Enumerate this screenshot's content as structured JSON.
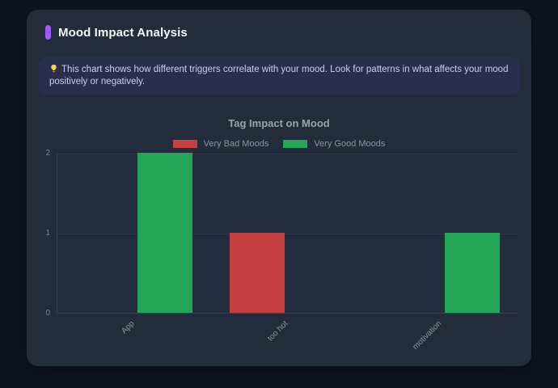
{
  "header": {
    "title": "Mood Impact Analysis"
  },
  "banner": {
    "icon": "lightbulb",
    "text": "This chart shows how different triggers correlate with your mood. Look for patterns in what affects your mood positively or negatively."
  },
  "chart_data": {
    "type": "bar",
    "title": "Tag Impact on Mood",
    "categories": [
      "App",
      "too hot",
      "motivation"
    ],
    "series": [
      {
        "name": "Very Bad Moods",
        "color": "#c44043",
        "values": [
          0,
          1,
          0
        ]
      },
      {
        "name": "Very Good Moods",
        "color": "#23a657",
        "values": [
          2,
          0,
          1
        ]
      }
    ],
    "ylim": [
      0,
      2
    ],
    "yticks": [
      0,
      1,
      2
    ],
    "legend_position": "top",
    "grid": true,
    "x_label_rotation": -45
  },
  "theme": {
    "accent": "#a259f7",
    "page_bg": "#0d1321",
    "card_bg": "#222c3b",
    "banner_bg": "#2a2e4c",
    "bulb_color": "#fcd34d"
  }
}
